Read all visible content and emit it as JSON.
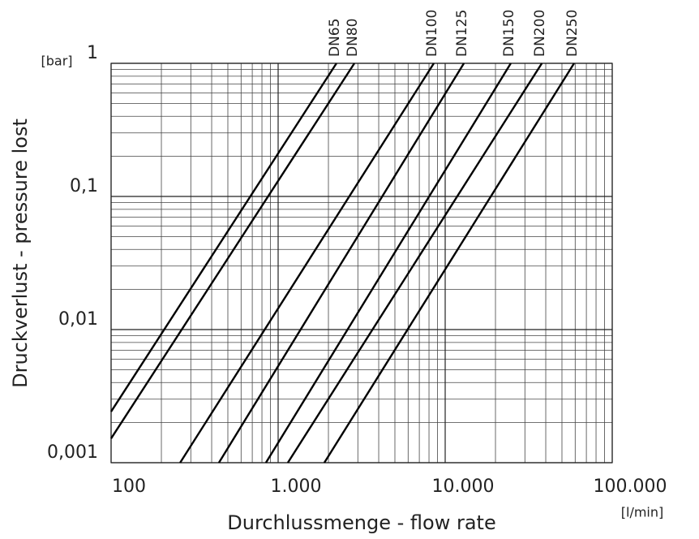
{
  "chart_data": {
    "type": "line",
    "x_label": "Durchlussmenge - flow rate",
    "y_label": "Druckverlust - pressure lost",
    "x_unit": "[l/min]",
    "y_unit": "[bar]",
    "log_x": true,
    "log_y": true,
    "grid": true,
    "xlim": [
      100,
      100000
    ],
    "ylim": [
      0.001,
      1
    ],
    "xticks": [
      {
        "value": 100,
        "label": "100"
      },
      {
        "value": 1000,
        "label": "1.000"
      },
      {
        "value": 10000,
        "label": "10.000"
      },
      {
        "value": 100000,
        "label": "100.000"
      }
    ],
    "yticks": [
      {
        "value": 0.001,
        "label": "0,001"
      },
      {
        "value": 0.01,
        "label": "0,01"
      },
      {
        "value": 0.1,
        "label": "0,1"
      },
      1
    ],
    "series": [
      {
        "name": "DN65",
        "color": "#000000",
        "x": [
          100,
          2234
        ],
        "values": [
          0.00242,
          1
        ]
      },
      {
        "name": "DN80",
        "color": "#000000",
        "x": [
          100,
          2860
        ],
        "values": [
          0.00152,
          1
        ]
      },
      {
        "name": "DN100",
        "color": "#000000",
        "x": [
          259,
          8550
        ],
        "values": [
          0.001,
          1
        ]
      },
      {
        "name": "DN125",
        "color": "#000000",
        "x": [
          442,
          12940
        ],
        "values": [
          0.001,
          1
        ]
      },
      {
        "name": "DN150",
        "color": "#000000",
        "x": [
          845,
          24700
        ],
        "values": [
          0.001,
          1
        ]
      },
      {
        "name": "DN200",
        "color": "#000000",
        "x": [
          1143,
          37900
        ],
        "values": [
          0.001,
          1
        ]
      },
      {
        "name": "DN250",
        "color": "#000000",
        "x": [
          1890,
          59100
        ],
        "values": [
          0.001,
          1
        ]
      }
    ]
  }
}
